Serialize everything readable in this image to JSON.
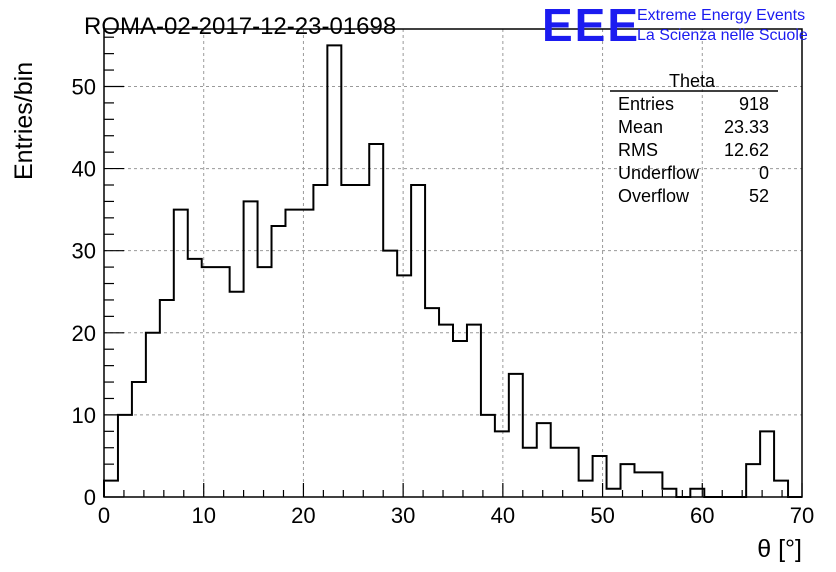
{
  "header": {
    "run_title": "ROMA-02-2017-12-23-01698",
    "logo_letters": "EEE",
    "logo_line1": "Extreme Energy Events",
    "logo_line2": "La Scienza nelle Scuole"
  },
  "stats": {
    "name": "Theta",
    "rows": [
      {
        "label": "Entries",
        "value": "918"
      },
      {
        "label": "Mean",
        "value": "23.33"
      },
      {
        "label": "RMS",
        "value": "12.62"
      },
      {
        "label": "Underflow",
        "value": "0"
      },
      {
        "label": "Overflow",
        "value": "52"
      }
    ]
  },
  "chart_data": {
    "type": "bar",
    "style": "step-histogram",
    "title": "ROMA-02-2017-12-23-01698",
    "xlabel": "θ [°]",
    "ylabel": "Entries/bin",
    "xlim": [
      0,
      70
    ],
    "ylim": [
      0,
      57
    ],
    "x_ticks": [
      0,
      10,
      20,
      30,
      40,
      50,
      60,
      70
    ],
    "y_ticks": [
      0,
      10,
      20,
      30,
      40,
      50
    ],
    "grid": true,
    "bin_width": 1.4,
    "values": [
      2,
      10,
      14,
      20,
      24,
      35,
      29,
      28,
      28,
      25,
      36,
      28,
      33,
      35,
      35,
      38,
      55,
      38,
      38,
      43,
      30,
      27,
      38,
      23,
      21,
      19,
      21,
      10,
      8,
      15,
      6,
      9,
      6,
      6,
      2,
      5,
      1,
      4,
      3,
      3,
      1,
      0,
      1,
      0,
      0,
      0,
      4,
      8,
      2,
      0
    ]
  }
}
